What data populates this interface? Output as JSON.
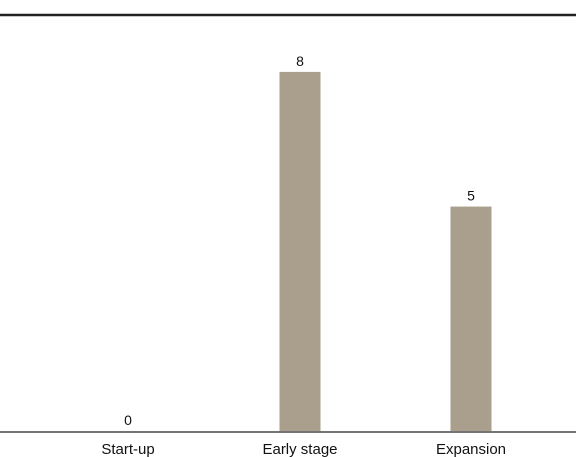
{
  "chart_data": {
    "type": "bar",
    "title": "",
    "xlabel": "",
    "ylabel": "",
    "categories": [
      "Start-up",
      "Early stage",
      "Expansion"
    ],
    "values": [
      0,
      8,
      5
    ],
    "data_labels": [
      "0",
      "8",
      "5"
    ],
    "ylim": [
      0,
      9
    ],
    "grid": false,
    "legend": "none",
    "bar_color": "#aa9f8c",
    "axis_color": "#222222",
    "top_rule_color": "#222222"
  }
}
